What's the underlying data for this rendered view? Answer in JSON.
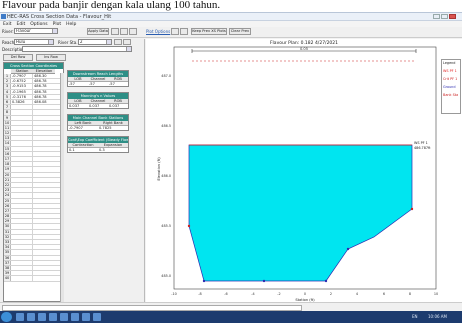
{
  "caption": "Flavour pada banjir dengan kala ulang 100 tahun.",
  "window": {
    "title": "HEC-RAS Cross Section Data - Flavour_Hit",
    "controls": [
      "_",
      "□",
      "X"
    ]
  },
  "menu": [
    "Exit",
    "Edit",
    "Options",
    "Plot",
    "Help"
  ],
  "toolbar": {
    "river_label": "River:",
    "river_value": "Flavour",
    "reach_label": "Reach:",
    "reach_value": "Hulu",
    "rs_label": "River Sta.:",
    "rs_value": "2",
    "apply_label": "Apply Data",
    "plot_options_label": "Plot Options",
    "keep_prev_label": "Keep Prev XS Plots",
    "clear_prev_label": "Clear Prev"
  },
  "left": {
    "description_label": "Description",
    "del_row_label": "Del Row",
    "ins_row_label": "Ins Row",
    "xs_table": {
      "title": "Cross Section Coordinates",
      "col_station": "Station",
      "col_elevation": "Elevation",
      "rows": [
        [
          "-0.7907",
          "486.30"
        ],
        [
          "-0.6752",
          "486.78"
        ],
        [
          "-0.9153",
          "486.78"
        ],
        [
          "-0.1965",
          "486.78"
        ],
        [
          "-0.3176",
          "486.78"
        ],
        [
          "0.3826",
          "486.08"
        ]
      ],
      "row_count": 40
    },
    "reach_lengths": {
      "title": "Downstream Reach Lengths",
      "cols": [
        "LOB",
        "Channel",
        "ROB"
      ],
      "values": [
        "-57",
        "-57",
        "-57"
      ]
    },
    "mannings": {
      "title": "Manning's n Values",
      "cols": [
        "LOB",
        "Channel",
        "ROB"
      ],
      "values": [
        "0.037",
        "0.037",
        "0.037"
      ]
    },
    "bank_stations": {
      "title": "Main Channel Bank Stations",
      "cols": [
        "Left Bank",
        "Right Bank"
      ],
      "values": [
        "-0.7907",
        "0.7825"
      ]
    },
    "contraction": {
      "title": "Cont\\Exp Coefficient (Steady Flow)",
      "cols": [
        "Contraction",
        "Expansion"
      ],
      "values": [
        "0.1",
        "0.3"
      ]
    }
  },
  "plot": {
    "title": "Flavour   Plan: 0.182   4/27/2021",
    "top_bar_label": "0.05",
    "x_axis_label": "Station (ft)",
    "y_axis_label": "Elevation (ft)",
    "x_ticks": [
      "-10",
      "-8",
      "-6",
      "-4",
      "-2",
      "0",
      "2",
      "4",
      "6",
      "8",
      "10"
    ],
    "y_ticks": [
      "487.0",
      "486.5",
      "486.0",
      "485.5",
      "485.0"
    ],
    "wse_label": "WS PF 1",
    "wse_value": "486.787ft",
    "legend": [
      "Legend",
      "WS PF 1",
      "Crit PF 1",
      "Ground",
      "Bank Sta"
    ],
    "colors": {
      "water": "#00e5f0",
      "ground": "#2c2cb0",
      "wse": "#e02020"
    }
  },
  "taskbar": {
    "clock": "10:06 AM",
    "language": "EN"
  }
}
